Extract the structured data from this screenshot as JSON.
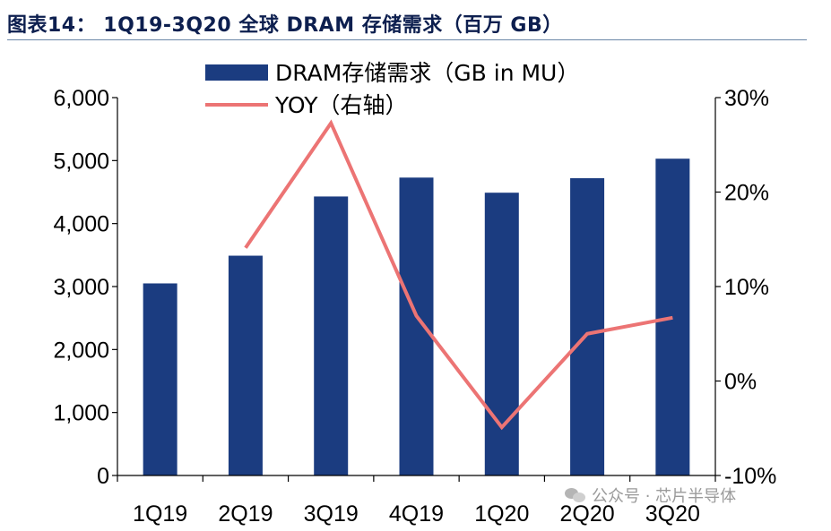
{
  "page": {
    "title": "图表14： 1Q19-3Q20 全球 DRAM 存储需求（百万 GB）"
  },
  "watermark": {
    "text": "公众号 · 芯片半导体",
    "icon": "wechat-icon"
  },
  "colors": {
    "bar": "#1b3c80",
    "line": "#ec7474",
    "title": "#0d1f4f",
    "axis": "#000000"
  },
  "chart_data": {
    "type": "bar",
    "categories": [
      "1Q19",
      "2Q19",
      "3Q19",
      "4Q19",
      "1Q20",
      "2Q20",
      "3Q20"
    ],
    "series": [
      {
        "name": "DRAM存储需求（GB in MU）",
        "type": "bar",
        "axis": "left",
        "values": [
          3050,
          3490,
          4430,
          4730,
          4490,
          4720,
          5030
        ]
      },
      {
        "name": "YOY（右轴）",
        "type": "line",
        "axis": "right",
        "values": [
          null,
          14.1,
          27.3,
          6.9,
          -4.9,
          5.0,
          6.7
        ]
      }
    ],
    "y_left": {
      "lim": [
        0,
        6000
      ],
      "ticks": [
        0,
        1000,
        2000,
        3000,
        4000,
        5000,
        6000
      ],
      "tick_labels": [
        "0",
        "1,000",
        "2,000",
        "3,000",
        "4,000",
        "5,000",
        "6,000"
      ]
    },
    "y_right": {
      "lim": [
        -10,
        30
      ],
      "ticks": [
        -10,
        0,
        10,
        20,
        30
      ],
      "tick_labels": [
        "-10%",
        "0%",
        "10%",
        "20%",
        "30%"
      ]
    },
    "grid": false,
    "legend": "top-center"
  }
}
